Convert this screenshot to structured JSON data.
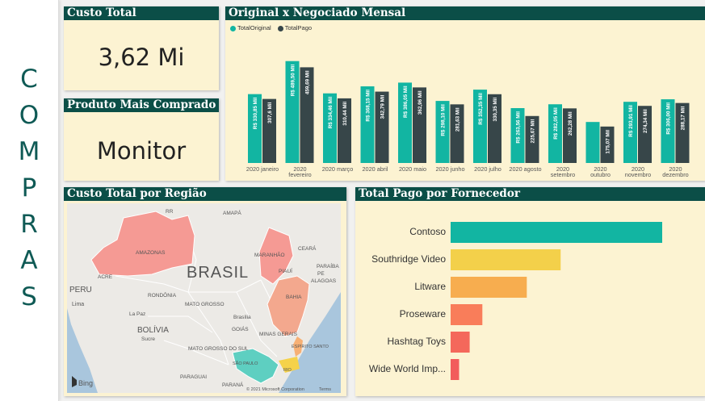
{
  "sidebar": {
    "letters": [
      "C",
      "O",
      "M",
      "P",
      "R",
      "A",
      "S"
    ]
  },
  "kpi_custo": {
    "title": "Custo Total",
    "value": "3,62 Mi"
  },
  "kpi_produto": {
    "title": "Produto Mais Comprado",
    "value": "Monitor"
  },
  "monthly": {
    "title": "Original x Negociado Mensal",
    "legend": [
      "TotalOriginal",
      "TotalPago"
    ],
    "colors": {
      "original": "#12b5a2",
      "pago": "#374649"
    }
  },
  "map": {
    "title": "Custo Total por Região",
    "bing": "Bing",
    "copyright": "© 2021 Microsoft Corporation",
    "terms": "Terms",
    "labels": {
      "rr": "RR",
      "amapa": "AMAPÁ",
      "amazonas": "AMAZONAS",
      "brasil": "BRASIL",
      "maranhao": "MARANHÃO",
      "ceara": "CEARÁ",
      "paraiba": "PARAÍBA",
      "piaui": "PIAUÍ",
      "pe": "PE",
      "alagoas": "ALAGOAS",
      "acre": "ACRE",
      "peru": "PERU",
      "lima": "Lima",
      "rondonia": "RONDÔNIA",
      "bahia": "BAHIA",
      "mato_grosso": "MATO GROSSO",
      "la_paz": "La Paz",
      "brasilia": "Brasília",
      "bolivia": "BOLÍVIA",
      "goias": "GOIÁS",
      "sucre": "Sucre",
      "minas": "MINAS GERAIS",
      "mato_grosso_sul": "MATO GROSSO DO SUL",
      "espirito_santo": "ESPÍRITO SANTO",
      "sao_paulo": "SÃO PAULO",
      "rio": "RIO",
      "paraguai": "PARAGUAI",
      "parana": "PARANÁ"
    }
  },
  "fornecedor": {
    "title": "Total Pago por Fornecedor",
    "items": [
      "Contoso",
      "Southridge Video",
      "Litware",
      "Proseware",
      "Hashtag Toys",
      "Wide World Imp..."
    ]
  },
  "chart_data": [
    {
      "type": "bar",
      "title": "Original x Negociado Mensal",
      "categories": [
        "2020 janeiro",
        "2020 fevereiro",
        "2020 março",
        "2020 abril",
        "2020 maio",
        "2020 junho",
        "2020 julho",
        "2020 agosto",
        "2020 setembro",
        "2020 outubro",
        "2020 novembro",
        "2020 dezembro"
      ],
      "series": [
        {
          "name": "TotalOriginal",
          "values": [
            330.85,
            489.5,
            334.46,
            368.15,
            386.05,
            298.1,
            352.35,
            263.56,
            282.05,
            197.0,
            293.91,
            306.0
          ],
          "labels": [
            "R$ 330,85 Mil",
            "R$ 489,50 Mil",
            "R$ 334,46 Mil",
            "R$ 368,15 Mil",
            "R$ 386,05 Mil",
            "R$ 298,10 Mil",
            "R$ 352,35 Mil",
            "R$ 263,56 Mil",
            "R$ 282,05 Mil",
            "",
            "R$ 293,91 Mil",
            "R$ 306,00 Mil"
          ]
        },
        {
          "name": "TotalPago",
          "values": [
            307.6,
            459.69,
            310.44,
            342.79,
            362.96,
            281.63,
            330.35,
            225.67,
            262.28,
            175.07,
            274.34,
            288.17
          ],
          "labels": [
            "307,6 Mil",
            "459,69 Mil",
            "310,44 Mil",
            "342,79 Mil",
            "362,96 Mil",
            "281,63 Mil",
            "330,35 Mil",
            "225,67 Mil",
            "262,28 Mil",
            "175,07 Mil",
            "274,34 Mil",
            "288,17 Mil"
          ]
        }
      ],
      "legend": "top-left",
      "grid": false
    },
    {
      "type": "bar",
      "title": "Total Pago por Fornecedor",
      "orientation": "horizontal",
      "categories": [
        "Contoso",
        "Southridge Video",
        "Litware",
        "Proseware",
        "Hashtag Toys",
        "Wide World Imp..."
      ],
      "values": [
        1000,
        520,
        360,
        150,
        90,
        40
      ],
      "colors": [
        "#12b5a2",
        "#f3d04a",
        "#f7ad4f",
        "#f97d5a",
        "#f4685b",
        "#f25c5c"
      ]
    }
  ]
}
